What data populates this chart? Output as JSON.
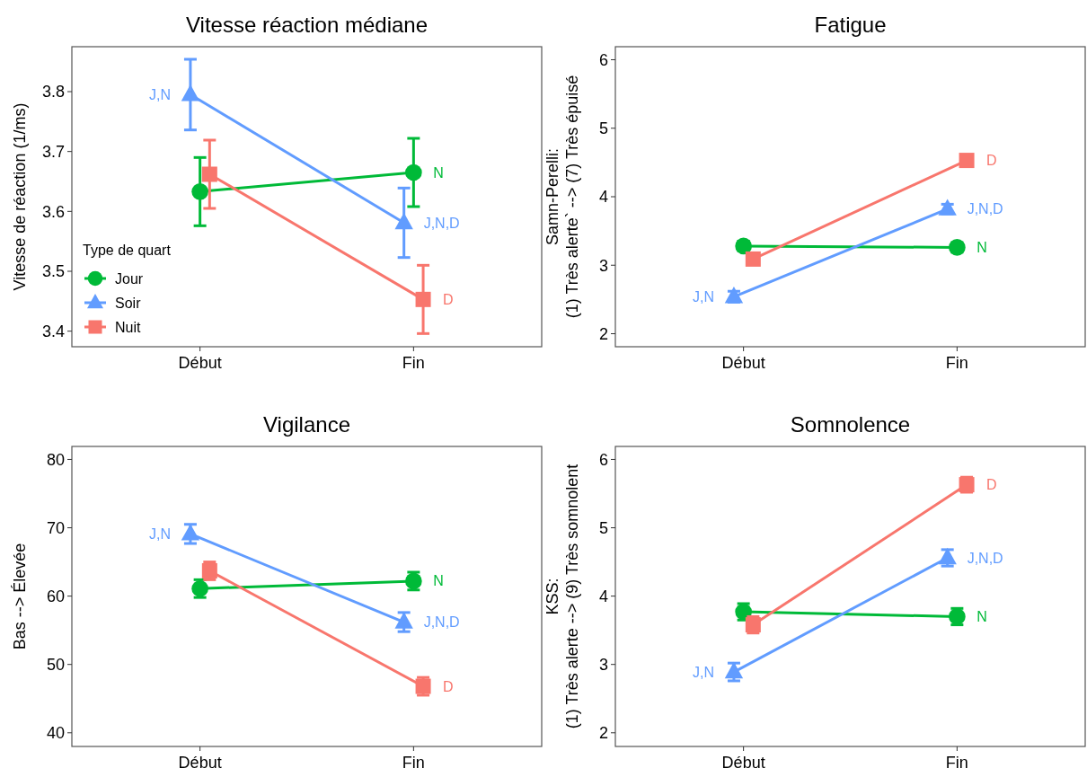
{
  "chart_data": [
    {
      "type": "line",
      "title": "Vitesse réaction médiane",
      "ylabel": "Vitesse de réaction (1/ms)",
      "categories": [
        "Début",
        "Fin"
      ],
      "ylim": [
        3.374,
        3.875
      ],
      "yticks": [
        3.4,
        3.5,
        3.6,
        3.7,
        3.8
      ],
      "legend": "bottom left",
      "legend_title": "Type de quart",
      "series": [
        {
          "name": "Jour",
          "color": "#00ba38",
          "marker": "circle",
          "values": [
            3.633,
            3.665
          ],
          "errors": [
            0.057,
            0.057
          ]
        },
        {
          "name": "Soir",
          "color": "#619cff",
          "marker": "triangle",
          "values": [
            3.795,
            3.581
          ],
          "errors": [
            0.059,
            0.058
          ]
        },
        {
          "name": "Nuit",
          "color": "#f8766d",
          "marker": "square",
          "values": [
            3.662,
            3.453
          ],
          "errors": [
            0.057,
            0.057
          ]
        }
      ],
      "annotations": [
        {
          "text": "J,N",
          "x": "Début",
          "y": 3.795
        },
        {
          "text": "N",
          "x": "Fin",
          "y": 3.665
        },
        {
          "text": "J,N,D",
          "x": "Fin",
          "y": 3.581
        },
        {
          "text": "D",
          "x": "Fin",
          "y": 3.453
        }
      ]
    },
    {
      "type": "line",
      "title": "Fatigue",
      "ylabel": "Samn-Perelli:\n(1) Très alerte` --> (7) Très épuisé",
      "categories": [
        "Début",
        "Fin"
      ],
      "ylim": [
        1.81,
        6.19
      ],
      "yticks": [
        2,
        3,
        4,
        5,
        6
      ],
      "series": [
        {
          "color": "#00ba38",
          "marker": "circle",
          "values": [
            3.28,
            3.26
          ],
          "errors": [
            0.07,
            0.07
          ]
        },
        {
          "color": "#619cff",
          "marker": "triangle",
          "values": [
            2.54,
            3.82
          ],
          "errors": [
            0.08,
            0.07
          ]
        },
        {
          "color": "#f8766d",
          "marker": "square",
          "values": [
            3.09,
            4.53
          ],
          "errors": [
            0.05,
            0.05
          ]
        }
      ],
      "annotations": [
        {
          "text": "J,N",
          "x": "Début",
          "y": 2.54
        },
        {
          "text": "N",
          "x": "Fin",
          "y": 3.26
        },
        {
          "text": "J,N,D",
          "x": "Fin",
          "y": 3.82
        },
        {
          "text": "D",
          "x": "Fin",
          "y": 4.53
        }
      ]
    },
    {
      "type": "line",
      "title": "Vigilance",
      "ylabel": "Bas --> Élevée",
      "categories": [
        "Début",
        "Fin"
      ],
      "ylim": [
        38,
        81.9
      ],
      "yticks": [
        40,
        50,
        60,
        70,
        80
      ],
      "series": [
        {
          "color": "#00ba38",
          "marker": "circle",
          "values": [
            61.1,
            62.2
          ],
          "errors": [
            1.3,
            1.3
          ]
        },
        {
          "color": "#619cff",
          "marker": "triangle",
          "values": [
            69.1,
            56.2
          ],
          "errors": [
            1.4,
            1.4
          ]
        },
        {
          "color": "#f8766d",
          "marker": "square",
          "values": [
            63.7,
            46.8
          ],
          "errors": [
            1.3,
            1.3
          ]
        }
      ],
      "annotations": [
        {
          "text": "J,N",
          "x": "Début",
          "y": 69.1
        },
        {
          "text": "N",
          "x": "Fin",
          "y": 62.2
        },
        {
          "text": "J,N,D",
          "x": "Fin",
          "y": 56.2
        },
        {
          "text": "D",
          "x": "Fin",
          "y": 46.8
        }
      ]
    },
    {
      "type": "line",
      "title": "Somnolence",
      "ylabel": "KSS:\n(1) Très alerte --> (9) Très somnolent",
      "categories": [
        "Début",
        "Fin"
      ],
      "ylim": [
        1.8,
        6.19
      ],
      "yticks": [
        2,
        3,
        4,
        5,
        6
      ],
      "series": [
        {
          "color": "#00ba38",
          "marker": "circle",
          "values": [
            3.77,
            3.7
          ],
          "errors": [
            0.12,
            0.12
          ]
        },
        {
          "color": "#619cff",
          "marker": "triangle",
          "values": [
            2.89,
            4.56
          ],
          "errors": [
            0.13,
            0.12
          ]
        },
        {
          "color": "#f8766d",
          "marker": "square",
          "values": [
            3.58,
            5.63
          ],
          "errors": [
            0.12,
            0.11
          ]
        }
      ],
      "annotations": [
        {
          "text": "J,N",
          "x": "Début",
          "y": 2.89
        },
        {
          "text": "N",
          "x": "Fin",
          "y": 3.7
        },
        {
          "text": "J,N,D",
          "x": "Fin",
          "y": 4.56
        },
        {
          "text": "D",
          "x": "Fin",
          "y": 5.63
        }
      ]
    }
  ]
}
